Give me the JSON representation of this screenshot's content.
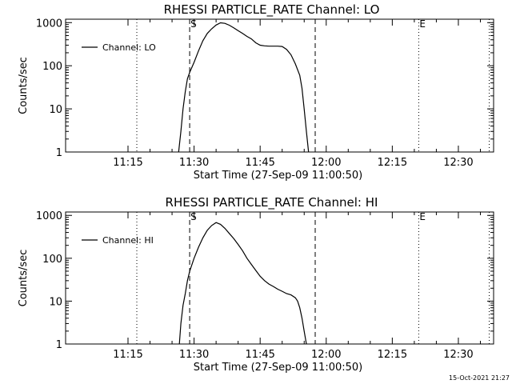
{
  "page": {
    "timestamp": "15-Oct-2021 21:27"
  },
  "chart_data": [
    {
      "type": "line",
      "title": "RHESSI PARTICLE_RATE Channel: LO",
      "xlabel": "Start Time (27-Sep-09 11:00:50)",
      "ylabel": "Counts/sec",
      "xscale": "time",
      "yscale": "log",
      "xlim": [
        "11:00:50",
        "12:38:00"
      ],
      "ylim": [
        1,
        1200
      ],
      "xticks": [
        "11:15",
        "11:30",
        "11:45",
        "12:00",
        "12:15",
        "12:30"
      ],
      "yticks": [
        "1",
        "10",
        "100",
        "1000"
      ],
      "legend": {
        "position": "top-left",
        "entries": [
          "Channel: LO"
        ]
      },
      "markers": [
        {
          "label": "S",
          "time": "11:29:00",
          "style": "dashed"
        },
        {
          "label": "",
          "time": "11:57:30",
          "style": "dashed"
        },
        {
          "label": "",
          "time": "11:17:00",
          "style": "dotted"
        },
        {
          "label": "E",
          "time": "12:21:00",
          "style": "dotted"
        },
        {
          "label": "",
          "time": "12:37:00",
          "style": "dotted"
        }
      ],
      "series": [
        {
          "name": "Channel: LO",
          "x": [
            "11:26:30",
            "11:27:00",
            "11:27:30",
            "11:28:00",
            "11:28:30",
            "11:29:00",
            "11:30:00",
            "11:31:00",
            "11:32:00",
            "11:33:00",
            "11:34:00",
            "11:35:00",
            "11:36:00",
            "11:37:00",
            "11:38:00",
            "11:39:00",
            "11:40:00",
            "11:41:00",
            "11:42:00",
            "11:43:00",
            "11:44:00",
            "11:45:00",
            "11:46:00",
            "11:47:00",
            "11:48:00",
            "11:49:00",
            "11:50:00",
            "11:51:00",
            "11:52:00",
            "11:53:00",
            "11:54:00",
            "11:54:30",
            "11:55:00",
            "11:55:30",
            "11:56:00"
          ],
          "y": [
            1,
            3,
            10,
            25,
            50,
            70,
            120,
            220,
            380,
            560,
            720,
            880,
            990,
            960,
            870,
            760,
            650,
            560,
            480,
            420,
            340,
            300,
            290,
            285,
            285,
            285,
            280,
            240,
            180,
            110,
            60,
            30,
            10,
            3,
            1
          ]
        }
      ]
    },
    {
      "type": "line",
      "title": "RHESSI PARTICLE_RATE Channel: HI",
      "xlabel": "Start Time (27-Sep-09 11:00:50)",
      "ylabel": "Counts/sec",
      "xscale": "time",
      "yscale": "log",
      "xlim": [
        "11:00:50",
        "12:38:00"
      ],
      "ylim": [
        1,
        1200
      ],
      "xticks": [
        "11:15",
        "11:30",
        "11:45",
        "12:00",
        "12:15",
        "12:30"
      ],
      "yticks": [
        "1",
        "10",
        "100",
        "1000"
      ],
      "legend": {
        "position": "top-left",
        "entries": [
          "Channel: HI"
        ]
      },
      "markers": [
        {
          "label": "S",
          "time": "11:29:00",
          "style": "dashed"
        },
        {
          "label": "",
          "time": "11:57:30",
          "style": "dashed"
        },
        {
          "label": "",
          "time": "11:17:00",
          "style": "dotted"
        },
        {
          "label": "E",
          "time": "12:21:00",
          "style": "dotted"
        },
        {
          "label": "",
          "time": "12:37:00",
          "style": "dotted"
        }
      ],
      "series": [
        {
          "name": "Channel: HI",
          "x": [
            "11:26:40",
            "11:27:00",
            "11:27:30",
            "11:28:00",
            "11:28:30",
            "11:29:00",
            "11:30:00",
            "11:31:00",
            "11:32:00",
            "11:33:00",
            "11:34:00",
            "11:35:00",
            "11:36:00",
            "11:37:00",
            "11:38:00",
            "11:39:00",
            "11:40:00",
            "11:41:00",
            "11:42:00",
            "11:43:00",
            "11:44:00",
            "11:45:00",
            "11:46:00",
            "11:47:00",
            "11:48:00",
            "11:49:00",
            "11:50:00",
            "11:51:00",
            "11:52:00",
            "11:53:00",
            "11:53:30",
            "11:54:00",
            "11:54:30",
            "11:55:00",
            "11:55:30"
          ],
          "y": [
            1,
            3,
            8,
            15,
            30,
            50,
            100,
            180,
            300,
            450,
            580,
            680,
            620,
            500,
            380,
            290,
            210,
            150,
            100,
            72,
            52,
            38,
            30,
            25,
            22,
            19,
            17,
            15,
            14,
            12,
            10,
            7,
            4,
            2,
            1
          ]
        }
      ]
    }
  ]
}
